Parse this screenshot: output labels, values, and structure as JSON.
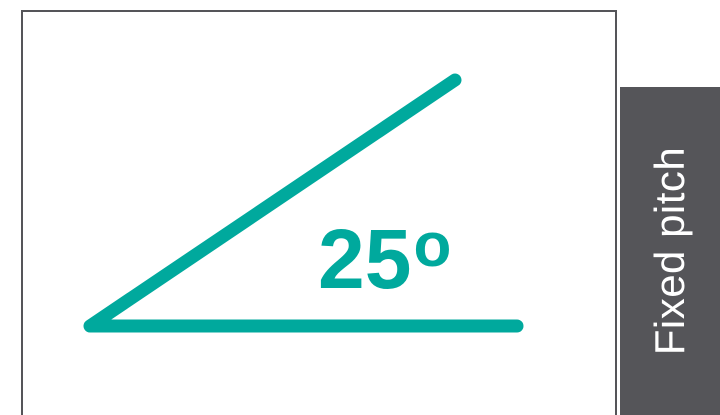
{
  "angle": {
    "value": "25",
    "unit_symbol": "o"
  },
  "side_tab": {
    "label": "Fixed pitch"
  },
  "colors": {
    "accent": "#00a99d",
    "frame": "#555559",
    "tab_background": "#555559",
    "tab_text": "#ffffff",
    "background": "#ffffff"
  }
}
